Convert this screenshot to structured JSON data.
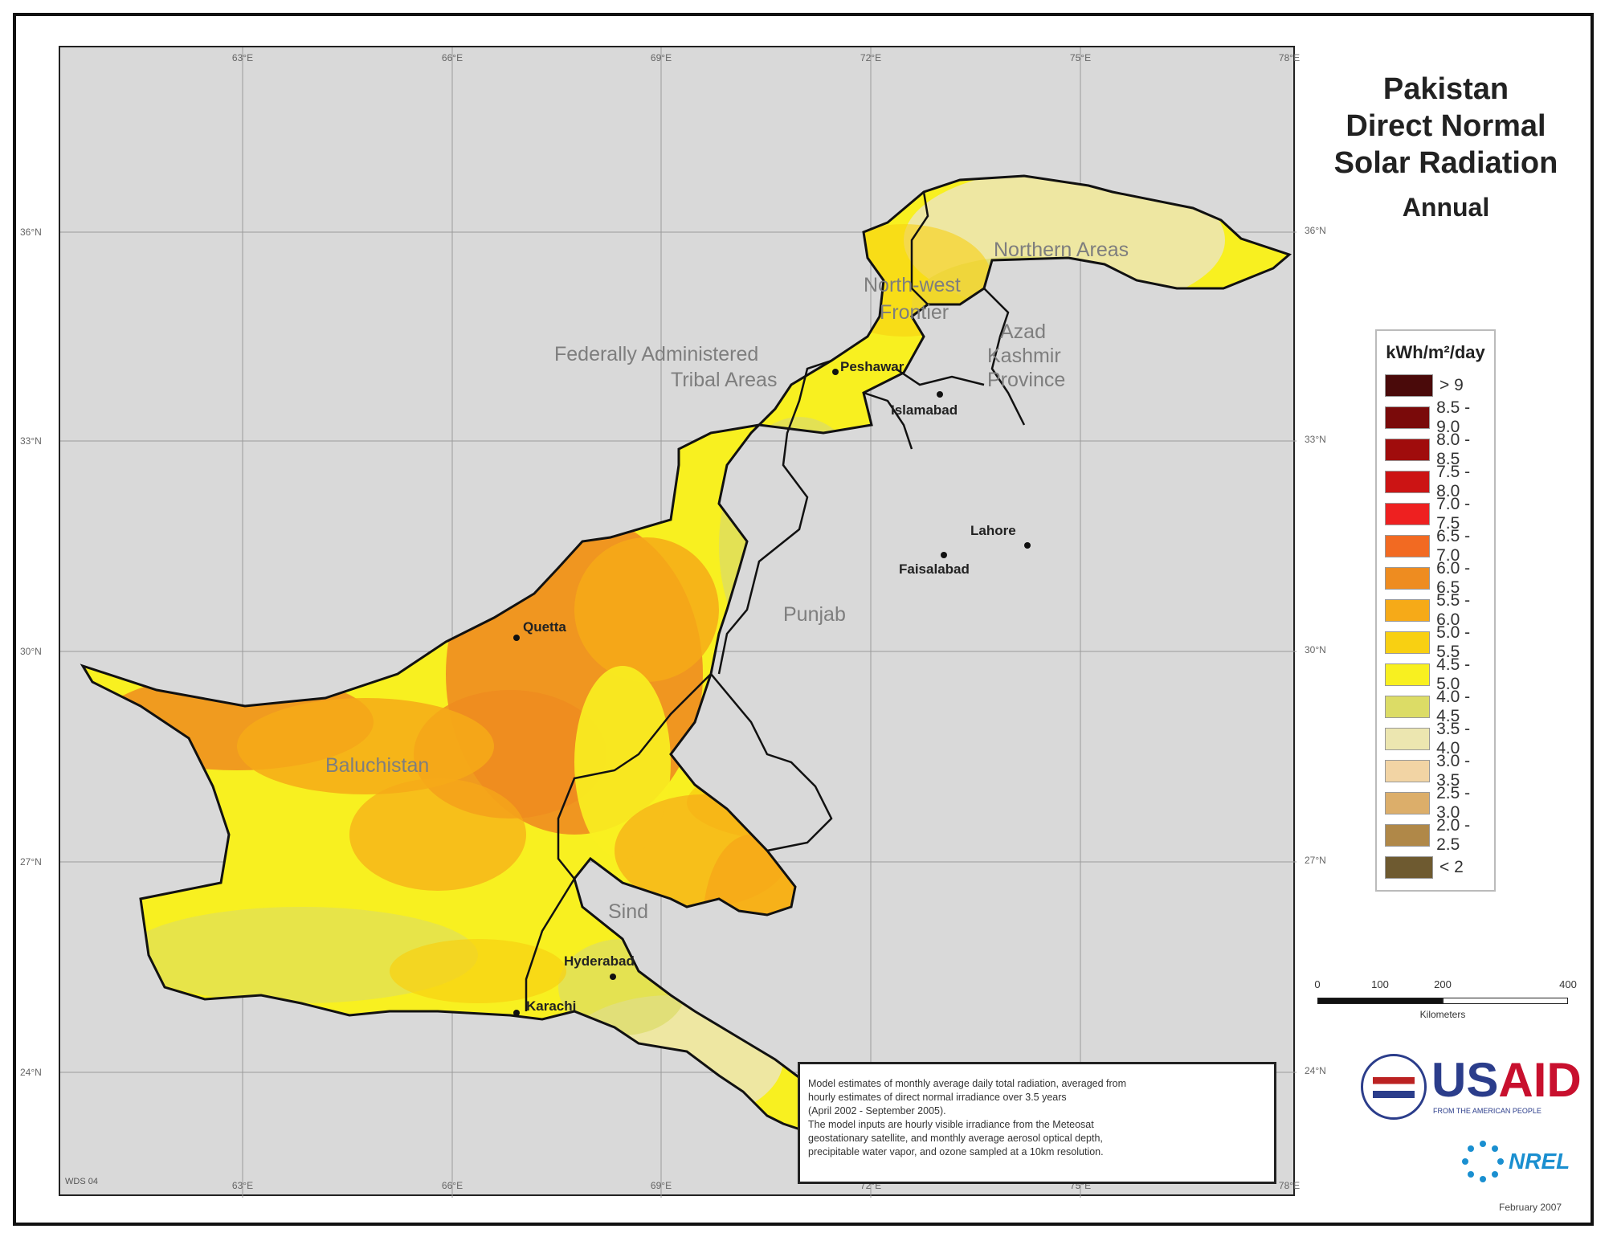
{
  "title": {
    "lines": [
      "Pakistan",
      "Direct Normal",
      "Solar Radiation"
    ],
    "subtitle": "Annual"
  },
  "ticks": {
    "longitude": [
      "63°E",
      "66°E",
      "69°E",
      "72°E",
      "75°E",
      "78°E"
    ],
    "latitude": [
      "36°N",
      "33°N",
      "30°N",
      "27°N",
      "24°N"
    ]
  },
  "regions": {
    "northern_areas": "Northern Areas",
    "north_west_frontier_1": "North-west",
    "north_west_frontier_2": "Frontier",
    "fata_1": "Federally Administered",
    "fata_2": "Tribal Areas",
    "azad_kashmir_1": "Azad",
    "azad_kashmir_2": "Kashmir",
    "azad_kashmir_3": "Province",
    "punjab": "Punjab",
    "baluchistan": "Baluchistan",
    "sind": "Sind"
  },
  "cities": {
    "peshawar": "Peshawar",
    "islamabad": "Islamabad",
    "lahore": "Lahore",
    "faisalabad": "Faisalabad",
    "quetta": "Quetta",
    "hyderabad": "Hyderabad",
    "karachi": "Karachi"
  },
  "legend": {
    "title": "kWh/m²/day",
    "items": [
      {
        "label": "> 9",
        "color": "#4a0a0a"
      },
      {
        "label": "8.5 - 9.0",
        "color": "#7a0a0a"
      },
      {
        "label": "8.0 - 8.5",
        "color": "#a00c0c"
      },
      {
        "label": "7.5 - 8.0",
        "color": "#cc1414"
      },
      {
        "label": "7.0 - 7.5",
        "color": "#ee2020"
      },
      {
        "label": "6.5 - 7.0",
        "color": "#f26a22"
      },
      {
        "label": "6.0 - 6.5",
        "color": "#ee8c20"
      },
      {
        "label": "5.5 - 6.0",
        "color": "#f6aa18"
      },
      {
        "label": "5.0 - 5.5",
        "color": "#f8d012"
      },
      {
        "label": "4.5 - 5.0",
        "color": "#f8f020"
      },
      {
        "label": "4.0 - 4.5",
        "color": "#dcdc66"
      },
      {
        "label": "3.5 - 4.0",
        "color": "#ece6b0"
      },
      {
        "label": "3.0 - 3.5",
        "color": "#f2d4a4"
      },
      {
        "label": "2.5 - 3.0",
        "color": "#dcae6a"
      },
      {
        "label": "2.0 - 2.5",
        "color": "#b08848"
      },
      {
        "label": "< 2",
        "color": "#6e5a30"
      }
    ]
  },
  "scale": {
    "ticks": [
      "0",
      "100",
      "200",
      "400"
    ],
    "unit": "Kilometers"
  },
  "note": [
    "Model estimates of monthly average daily total radiation, averaged from",
    "hourly estimates of direct normal irradiance over 3.5 years",
    "(April 2002 - September 2005).",
    "The model inputs are hourly visible irradiance from the Meteosat",
    "geostationary satellite, and monthly average aerosol optical depth,",
    "precipitable water vapor, and ozone sampled at a 10km resolution."
  ],
  "logos": {
    "usaid_us": "US",
    "usaid_aid": "AID",
    "usaid_tagline": "FROM THE AMERICAN PEOPLE",
    "nrel": "NREL"
  },
  "map_id": "WDS 04",
  "date": "February 2007",
  "colors": {
    "background": "#d9d9d9",
    "border": "#222222"
  }
}
